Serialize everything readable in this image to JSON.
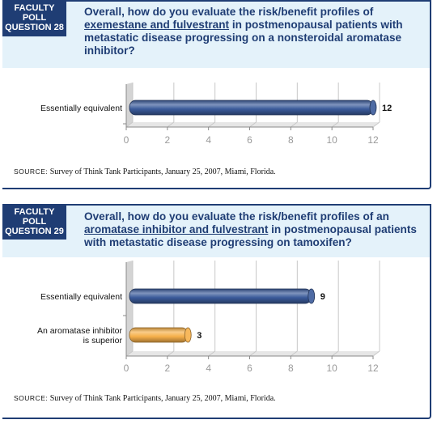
{
  "panels": [
    {
      "badge": [
        "FACULTY",
        "POLL",
        "QUESTION 28"
      ],
      "question": {
        "before": "Overall, how do you evaluate the risk/benefit profiles of ",
        "underlined": "exemestane and fulvestrant",
        "after": " in postmenopausal patients with metastatic disease progressing on a nonsteroidal aromatase inhibitor?"
      },
      "source_label": "SOURCE:",
      "source_text": "Survey of Think Tank Participants, January 25, 2007, Miami, Florida."
    },
    {
      "badge": [
        "FACULTY",
        "POLL",
        "QUESTION 29"
      ],
      "question": {
        "before": "Overall, how do you evaluate the risk/benefit profiles of an ",
        "underlined": "aromatase inhibitor and fulvestrant",
        "after": " in postmenopausal patients with metastatic disease progressing on tamoxifen?"
      },
      "source_label": "SOURCE:",
      "source_text": "Survey of Think Tank Participants, January 25, 2007, Miami, Florida."
    }
  ],
  "chart_data": [
    {
      "type": "bar",
      "orientation": "horizontal",
      "categories": [
        "Essentially equivalent"
      ],
      "values": [
        12
      ],
      "colors": [
        "#3a5a9a"
      ],
      "xlim": [
        0,
        12
      ],
      "xticks": [
        0,
        2,
        4,
        6,
        8,
        10,
        12
      ],
      "grid": true
    },
    {
      "type": "bar",
      "orientation": "horizontal",
      "categories": [
        "Essentially equivalent",
        "An aromatase inhibitor\nis superior"
      ],
      "values": [
        9,
        3
      ],
      "colors": [
        "#3a5a9a",
        "#f6b04a"
      ],
      "xlim": [
        0,
        12
      ],
      "xticks": [
        0,
        2,
        4,
        6,
        8,
        10,
        12
      ],
      "grid": true
    }
  ]
}
